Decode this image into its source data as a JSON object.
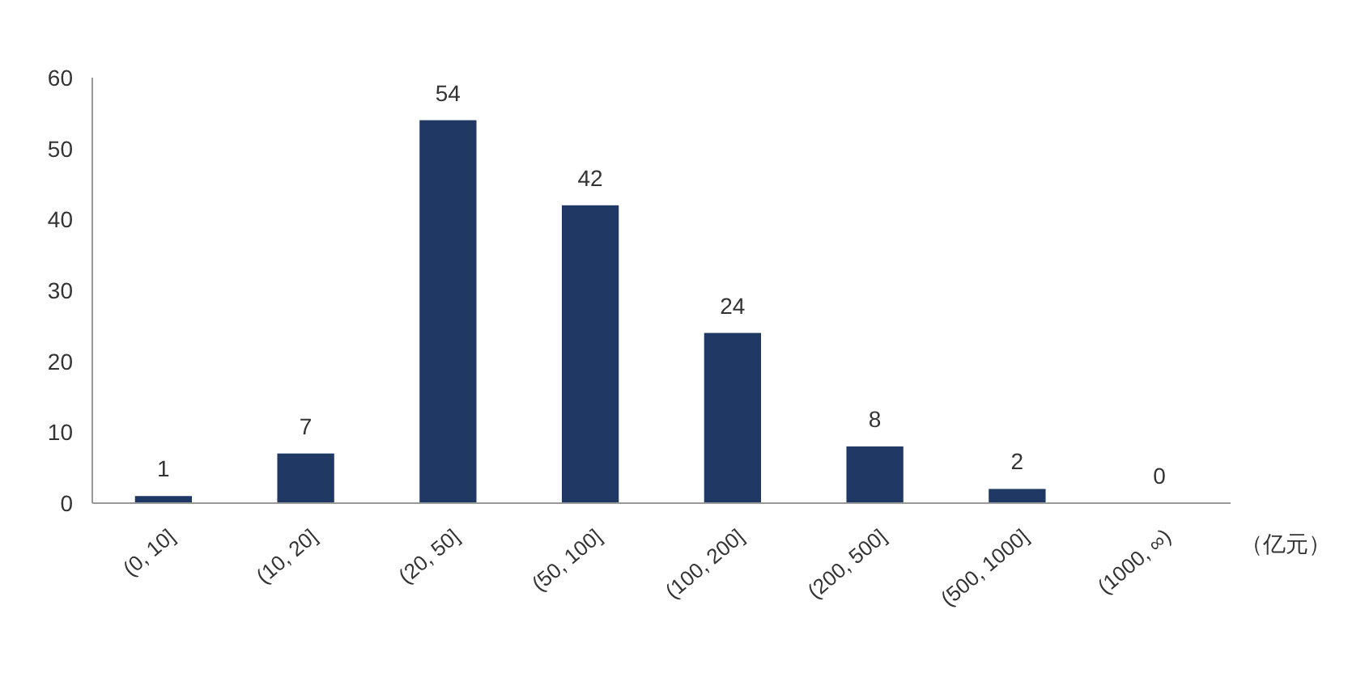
{
  "chart_data": {
    "type": "bar",
    "xlabel": "（亿元）",
    "categories": [
      "(0, 10]",
      "(10, 20]",
      "(20, 50]",
      "(50, 100]",
      "(100, 200]",
      "(200, 500]",
      "(500, 1000]",
      "(1000, ∞)"
    ],
    "values": [
      1,
      7,
      54,
      42,
      24,
      8,
      2,
      0
    ],
    "color": "#1f3864",
    "ylim": [
      0,
      60
    ],
    "yticks": [
      0,
      10,
      20,
      30,
      40,
      50,
      60
    ],
    "data_labels": true,
    "grid": false
  }
}
